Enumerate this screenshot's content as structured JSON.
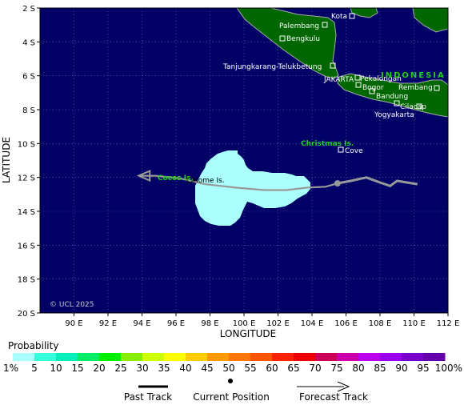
{
  "map": {
    "colors": {
      "ocean": "#000066",
      "land": "#006600",
      "coast": "#aaaaaa",
      "track": "#999999",
      "prob_area": "#aaffff"
    },
    "lon_ticks": [
      "90 E",
      "92 E",
      "94 E",
      "96 E",
      "98 E",
      "100 E",
      "102 E",
      "104 E",
      "106 E",
      "108 E",
      "110 E",
      "112 E"
    ],
    "lat_ticks": [
      "2 S",
      "4 S",
      "6 S",
      "8 S",
      "10 S",
      "12 S",
      "14 S",
      "16 S",
      "18 S",
      "20 S"
    ],
    "xlabel": "LONGITUDE",
    "ylabel": "LATITUDE",
    "country_label": "INDONESIA",
    "copyright": "© UCL 2025",
    "places": [
      {
        "name": "Palembang"
      },
      {
        "name": "Kota"
      },
      {
        "name": "Bengkulu"
      },
      {
        "name": "Tanjungkarang-Telukbetung"
      },
      {
        "name": "JAKARTA"
      },
      {
        "name": "Pekalongan"
      },
      {
        "name": "Bogor"
      },
      {
        "name": "Bandung"
      },
      {
        "name": "Rembang"
      },
      {
        "name": "Cilacap"
      },
      {
        "name": "Yogyakarta"
      },
      {
        "name": "Cove"
      },
      {
        "name": "Home Is."
      }
    ],
    "islands": [
      {
        "name": "Christmas Is."
      },
      {
        "name": "Cocos Is."
      }
    ]
  },
  "legend": {
    "title": "Probability",
    "bins": [
      "1%",
      "5",
      "10",
      "15",
      "20",
      "25",
      "30",
      "35",
      "40",
      "45",
      "50",
      "55",
      "60",
      "65",
      "70",
      "75",
      "80",
      "85",
      "90",
      "95",
      "100%"
    ],
    "colors": [
      "#aaffff",
      "#33ffdd",
      "#00eebb",
      "#00ee66",
      "#00ee00",
      "#88ee00",
      "#ccff00",
      "#ffff00",
      "#ffcc00",
      "#ff9900",
      "#ff7700",
      "#ff5500",
      "#ff2200",
      "#ee0000",
      "#cc0055",
      "#cc00aa",
      "#bb00ee",
      "#9900ee",
      "#7700cc",
      "#6600aa",
      "#550055"
    ]
  },
  "key": {
    "past_track": "Past Track",
    "current_position": "Current Position",
    "forecast_track": "Forecast Track"
  },
  "storm": {
    "past_track": [
      [
        110.2,
        -12.4
      ],
      [
        109.6,
        -12.3
      ],
      [
        109.0,
        -12.2
      ],
      [
        108.6,
        -12.5
      ],
      [
        108.0,
        -12.3
      ],
      [
        107.2,
        -12.0
      ],
      [
        106.3,
        -12.2
      ],
      [
        105.5,
        -12.35
      ]
    ],
    "current_position": [
      105.5,
      -12.35
    ],
    "forecast_track": [
      [
        105.5,
        -12.35
      ],
      [
        104.8,
        -12.55
      ],
      [
        103.7,
        -12.6
      ],
      [
        102.5,
        -12.75
      ],
      [
        101.2,
        -12.75
      ],
      [
        99.5,
        -12.6
      ],
      [
        97.7,
        -12.4
      ],
      [
        96.2,
        -12.05
      ],
      [
        94.8,
        -11.9
      ],
      [
        93.8,
        -11.9
      ]
    ],
    "probability_region_level": "1%"
  }
}
